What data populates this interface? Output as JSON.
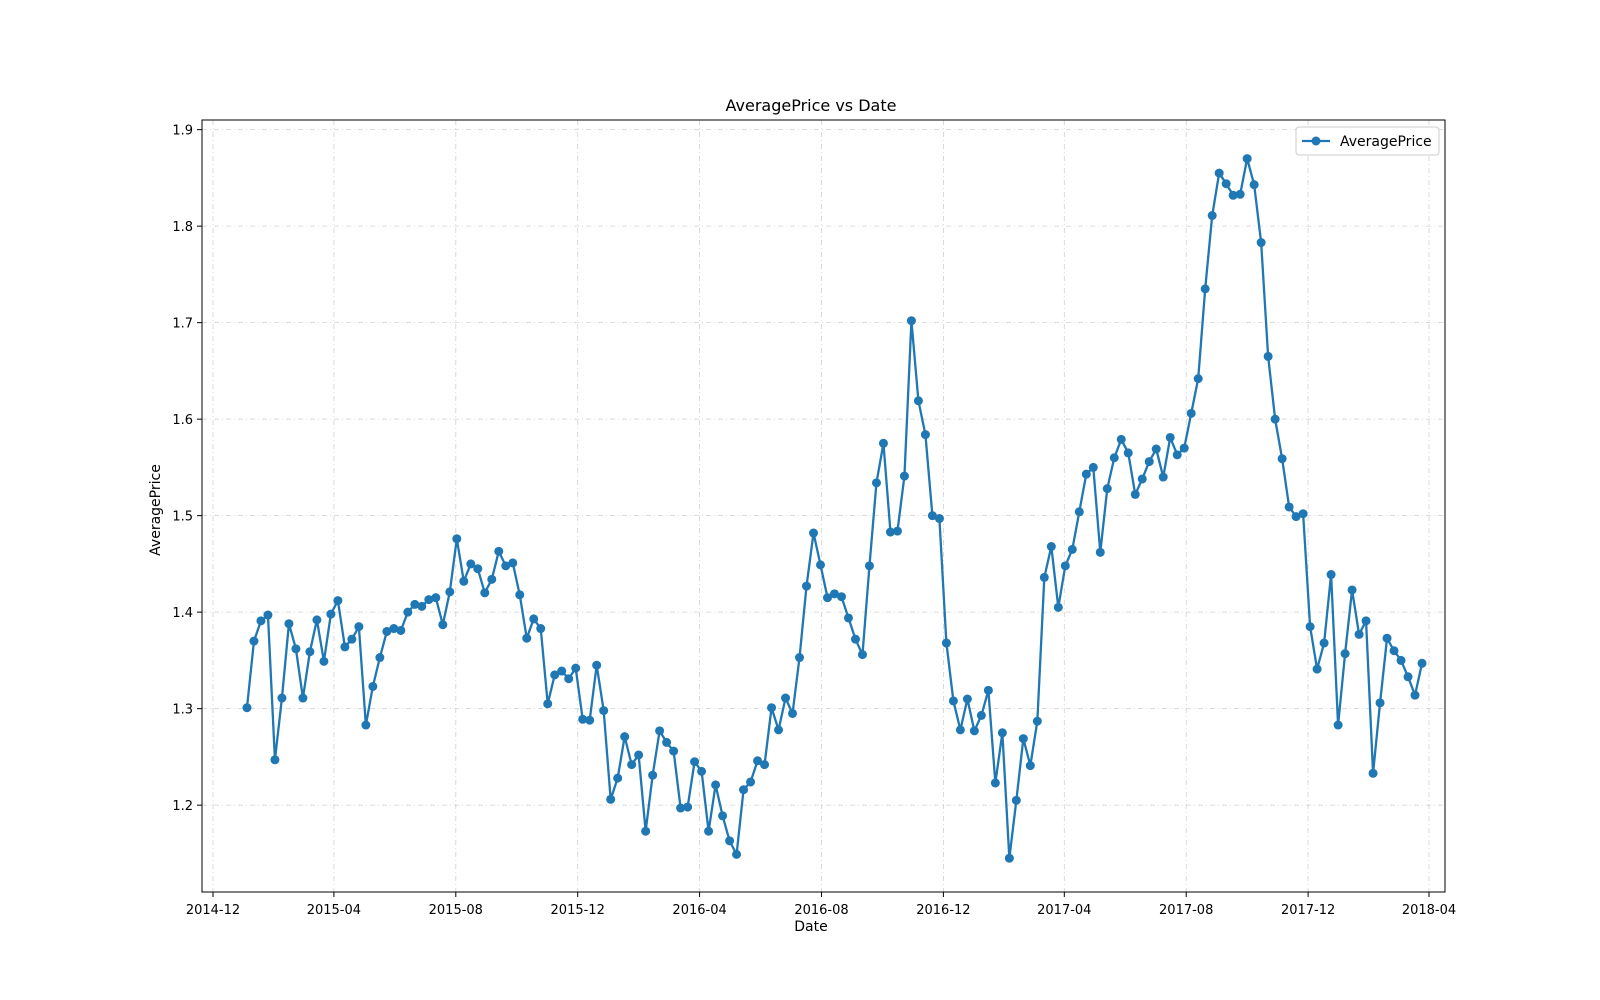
{
  "chart_data": {
    "type": "line",
    "title": "AveragePrice vs Date",
    "xlabel": "Date",
    "ylabel": "AveragePrice",
    "xlim": [
      "2014-11-20",
      "2018-04-17"
    ],
    "ylim": [
      1.11,
      1.91
    ],
    "x_ticks": [
      "2014-12-01",
      "2015-04-01",
      "2015-08-01",
      "2015-12-01",
      "2016-04-01",
      "2016-08-01",
      "2016-12-01",
      "2017-04-01",
      "2017-08-01",
      "2017-12-01",
      "2018-04-01"
    ],
    "x_tick_labels": [
      "2014-12",
      "2015-04",
      "2015-08",
      "2015-12",
      "2016-04",
      "2016-08",
      "2016-12",
      "2017-04",
      "2017-08",
      "2017-12",
      "2018-04"
    ],
    "y_ticks": [
      1.2,
      1.3,
      1.4,
      1.5,
      1.6,
      1.7,
      1.8,
      1.9
    ],
    "y_tick_labels": [
      "1.2",
      "1.3",
      "1.4",
      "1.5",
      "1.6",
      "1.7",
      "1.8",
      "1.9"
    ],
    "grid": true,
    "legend": "top-right",
    "color": "#1f77b4",
    "series": [
      {
        "name": "AveragePrice",
        "start_date": "2015-01-04",
        "interval_days": 7,
        "values": [
          1.301,
          1.37,
          1.391,
          1.397,
          1.247,
          1.311,
          1.388,
          1.362,
          1.311,
          1.359,
          1.392,
          1.349,
          1.398,
          1.412,
          1.364,
          1.372,
          1.385,
          1.283,
          1.323,
          1.353,
          1.38,
          1.383,
          1.381,
          1.4,
          1.408,
          1.406,
          1.413,
          1.415,
          1.387,
          1.421,
          1.476,
          1.432,
          1.45,
          1.445,
          1.42,
          1.434,
          1.463,
          1.448,
          1.451,
          1.418,
          1.373,
          1.393,
          1.383,
          1.305,
          1.335,
          1.339,
          1.331,
          1.342,
          1.289,
          1.288,
          1.345,
          1.298,
          1.206,
          1.228,
          1.271,
          1.242,
          1.252,
          1.173,
          1.231,
          1.277,
          1.265,
          1.256,
          1.197,
          1.198,
          1.245,
          1.235,
          1.173,
          1.221,
          1.189,
          1.163,
          1.149,
          1.216,
          1.224,
          1.246,
          1.242,
          1.301,
          1.278,
          1.311,
          1.295,
          1.353,
          1.427,
          1.482,
          1.449,
          1.415,
          1.419,
          1.416,
          1.394,
          1.372,
          1.356,
          1.448,
          1.534,
          1.575,
          1.483,
          1.484,
          1.541,
          1.702,
          1.619,
          1.584,
          1.5,
          1.497,
          1.368,
          1.308,
          1.278,
          1.31,
          1.277,
          1.293,
          1.319,
          1.223,
          1.275,
          1.145,
          1.205,
          1.269,
          1.241,
          1.287,
          1.436,
          1.468,
          1.405,
          1.448,
          1.465,
          1.504,
          1.543,
          1.55,
          1.462,
          1.528,
          1.56,
          1.579,
          1.565,
          1.522,
          1.538,
          1.556,
          1.569,
          1.54,
          1.581,
          1.563,
          1.57,
          1.606,
          1.642,
          1.735,
          1.811,
          1.855,
          1.844,
          1.832,
          1.833,
          1.87,
          1.843,
          1.783,
          1.665,
          1.6,
          1.559,
          1.509,
          1.499,
          1.502,
          1.385,
          1.341,
          1.368,
          1.439,
          1.283,
          1.357,
          1.423,
          1.377,
          1.391,
          1.233,
          1.306,
          1.373,
          1.36,
          1.35,
          1.333,
          1.314,
          1.347
        ]
      }
    ]
  }
}
